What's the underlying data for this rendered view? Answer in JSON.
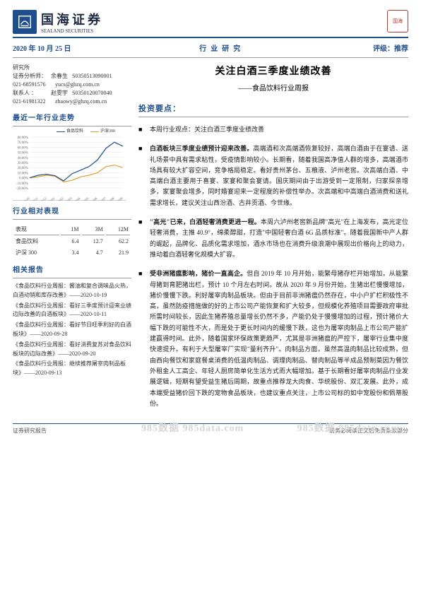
{
  "header": {
    "company_cn": "国海证券",
    "company_en": "SEALAND SECURITIES",
    "seal_text": "国海"
  },
  "topbar": {
    "date": "2020 年 10 月 25 日",
    "center": "行业研究",
    "rating": "评级：推荐"
  },
  "analyst": {
    "dept": "研究所",
    "role_label": "证券分析师：",
    "name": "余春生",
    "cert": "S0350513090001",
    "phone1": "021-68591576",
    "email1": "yucs@ghzq.com.cn",
    "contact_label": "联系人 ：",
    "contact_name": "赵雯宇",
    "cert2": "S0350120070040",
    "phone2": "021-61981322",
    "email2": "zhaowy@ghzq.com.cn"
  },
  "chart": {
    "title": "最近一年行业走势",
    "legend1": "食品饮料",
    "legend2": "沪深300",
    "legend1_color": "#1e4e8c",
    "legend2_color": "#e0a030",
    "y_ticks": [
      "80.00%",
      "70.00%",
      "60.00%",
      "50.00%",
      "40.00%",
      "30.00%",
      "20.00%",
      "10.00%",
      "0.00%",
      "-10.00%",
      "-20.00%"
    ],
    "x_ticks": [
      "19/10",
      "19/11",
      "19/12",
      "20/01",
      "20/02",
      "20/03",
      "20/04",
      "20/05",
      "20/06",
      "20/07",
      "20/08",
      "20/09"
    ],
    "width": 160,
    "height": 100,
    "series1": [
      0,
      5,
      7,
      4,
      -6,
      8,
      15,
      22,
      35,
      58,
      70,
      62
    ],
    "series2": [
      0,
      2,
      5,
      3,
      -8,
      -5,
      2,
      5,
      10,
      22,
      25,
      20
    ],
    "s1_color": "#1e4e8c",
    "s2_color": "#e0a030",
    "grid_color": "#e0e0e0",
    "bg": "#ffffff",
    "ymin": -20,
    "ymax": 80
  },
  "perf_table": {
    "title": "行业相对表现",
    "headers": [
      "表现",
      "1M",
      "3M",
      "12M"
    ],
    "rows": [
      [
        "食品饮料",
        "6.4",
        "12.7",
        "62.2"
      ],
      [
        "沪深 300",
        "3.4",
        "4.7",
        "21.9"
      ]
    ]
  },
  "reports": {
    "title": "相关报告",
    "items": [
      "《食品饮料行业周报：酱油和复合调味品火热，白酒动销和库存改善》——2020-10-19",
      "《食品饮料行业周报：看好三季度预计迎来业绩边际改善的白酒板块》——2020-10-11",
      "《食品饮料行业周报：看好节日旺季利好的白酒板块》——2020-09-28",
      "《食品饮料行业周报：看好消费复苏对食品饮料板块的边际改善》——2020-09-20",
      "《食品饮料行业周报：继续推荐屠宰肉制品板块》——2020-09-13"
    ]
  },
  "main_content": {
    "title": "关注白酒三季度业绩改善",
    "subtitle": "——食品饮料行业周报",
    "section": "投资要点：",
    "points": [
      "本周行业观点：关注白酒三季度业绩改善",
      "<b>白酒板块三季度业绩预计迎来改善。</b>高端酒和次高端酒恢复较好，高端白酒由于在宴请、送礼场景中具有需求粘性，受疫情影响较小。长期看，随着我国高净值人群的增多，高端酒市场具有较大扩容空间，竞争格局稳定。看好贵州茅台、五粮液、泸州老窖。次高端白酒、中高端白酒主要用于喜宴、家宴和聚会宴请。国庆期间由于出游受到一定限制，归家探亲增多，家宴聚会增多，同时婚宴迎来一定程度的补偿性举办。次高端和中高端白酒消费和送礼需求增长，建议关注山西汾酒、古井贡酒、今世缘。",
      "<b>\"高光\"已来，白酒轻奢消费更进一程。</b>本周六泸州老窖新品牌\"高光\"在上海发布，高光定位轻奢消费，主推 40.9°，绵柔醇甜，打造\"中国轻奢白酒 6G 品质标准\"。随着我国新中产人群的崛起，品牌化、品质化需求增加，酒水市场也在消费升级浪潮中展现出价格向上的动力，推动着白酒轻奢化规模大扩容。",
      "<b>受非洲猪瘟影响，猪价一直高企。</b>但自 2019 年 10 月开始，能繁母猪存栏开始增加，从能繁母猪到育肥猪出栏，预计 10 个月左右时间。故从 2020 年 9 月份开始，生猪出栏慢慢增加，猪价慢慢下跌。利好屠宰肉制品板块。但由于目前非洲猪瘟仍然存在，中小户扩栏积极性不高，虽然防疫措施做的好的上市公司产能恢复和扩大较多，但规模化养殖项目需要政府审批所需时间较长，因此生猪养殖总量增长仍然不多，产能仍处于慢慢增加的过程，预计猪价大幅下跌的可能性不大，而是处于更长时间内的缓慢下跌，这也为屠宰肉制品上市公司产能扩建赢得时间。此外，随着国家环保政策更趋严，尤其是非洲猪瘟的严控下，屠宰行业集中度快速提升。有利于大型屠宰厂实现\"量利齐升\"。肉制品方面，虽然高温肉制品比较成熟，但由西向餐饮和家庭餐桌消费的低温肉制品、调理肉制品、替肉制品等半成品预制菜因为餐饮外租金人工高企、年轻人厨房简单化生活方式而大幅增加。基于长期看好屠宰肉制品行业发展逻辑，短期有望受益生猪后周期，故重点推荐龙大肉食、华统股份、双汇发展。此外，成本端受益猪价回下跌的宠物食品板块，也建议重点关注，上市公司标的如中宠股份和佩蒂股份。"
    ]
  },
  "footer": {
    "left": "证券研究报告",
    "right": "请务必阅读正文后免责条款部分"
  },
  "watermark": "985数据 985data.com"
}
